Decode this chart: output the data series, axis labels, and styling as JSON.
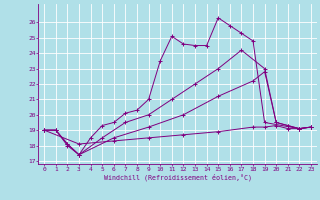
{
  "xlabel": "Windchill (Refroidissement éolien,°C)",
  "background_color": "#b0e0e8",
  "grid_color": "#ffffff",
  "line_color": "#800080",
  "xlim": [
    -0.5,
    23.5
  ],
  "ylim": [
    16.8,
    27.2
  ],
  "xticks": [
    0,
    1,
    2,
    3,
    4,
    5,
    6,
    7,
    8,
    9,
    10,
    11,
    12,
    13,
    14,
    15,
    16,
    17,
    18,
    19,
    20,
    21,
    22,
    23
  ],
  "yticks": [
    17,
    18,
    19,
    20,
    21,
    22,
    23,
    24,
    25,
    26
  ],
  "series": [
    [
      [
        0,
        1,
        2,
        3,
        4,
        5,
        6,
        7,
        8,
        9,
        10,
        11,
        12,
        13,
        14,
        15,
        16,
        17,
        18,
        19,
        22,
        23
      ],
      [
        19,
        19,
        18,
        17.4,
        18.5,
        19.3,
        19.5,
        20.1,
        20.3,
        21,
        23.5,
        25.1,
        24.6,
        24.5,
        24.5,
        26.3,
        25.8,
        25.3,
        24.8,
        19.5,
        19.1,
        19.2
      ]
    ],
    [
      [
        0,
        1,
        2,
        3,
        5,
        7,
        9,
        11,
        13,
        15,
        17,
        19,
        20,
        21,
        22,
        23
      ],
      [
        19,
        19,
        18.1,
        17.4,
        18.5,
        19.5,
        20,
        21,
        22,
        23,
        24.2,
        23,
        19.5,
        19.3,
        19.1,
        19.2
      ]
    ],
    [
      [
        0,
        1,
        2,
        3,
        6,
        9,
        12,
        15,
        18,
        19,
        20,
        21,
        22,
        23
      ],
      [
        19,
        19,
        18.1,
        17.4,
        18.5,
        19.2,
        20,
        21.2,
        22.2,
        22.8,
        19.5,
        19.3,
        19.1,
        19.2
      ]
    ],
    [
      [
        0,
        3,
        6,
        9,
        12,
        15,
        18,
        19,
        20,
        21,
        22,
        23
      ],
      [
        19,
        18.1,
        18.3,
        18.5,
        18.7,
        18.9,
        19.2,
        19.2,
        19.3,
        19.1,
        19.1,
        19.2
      ]
    ]
  ]
}
